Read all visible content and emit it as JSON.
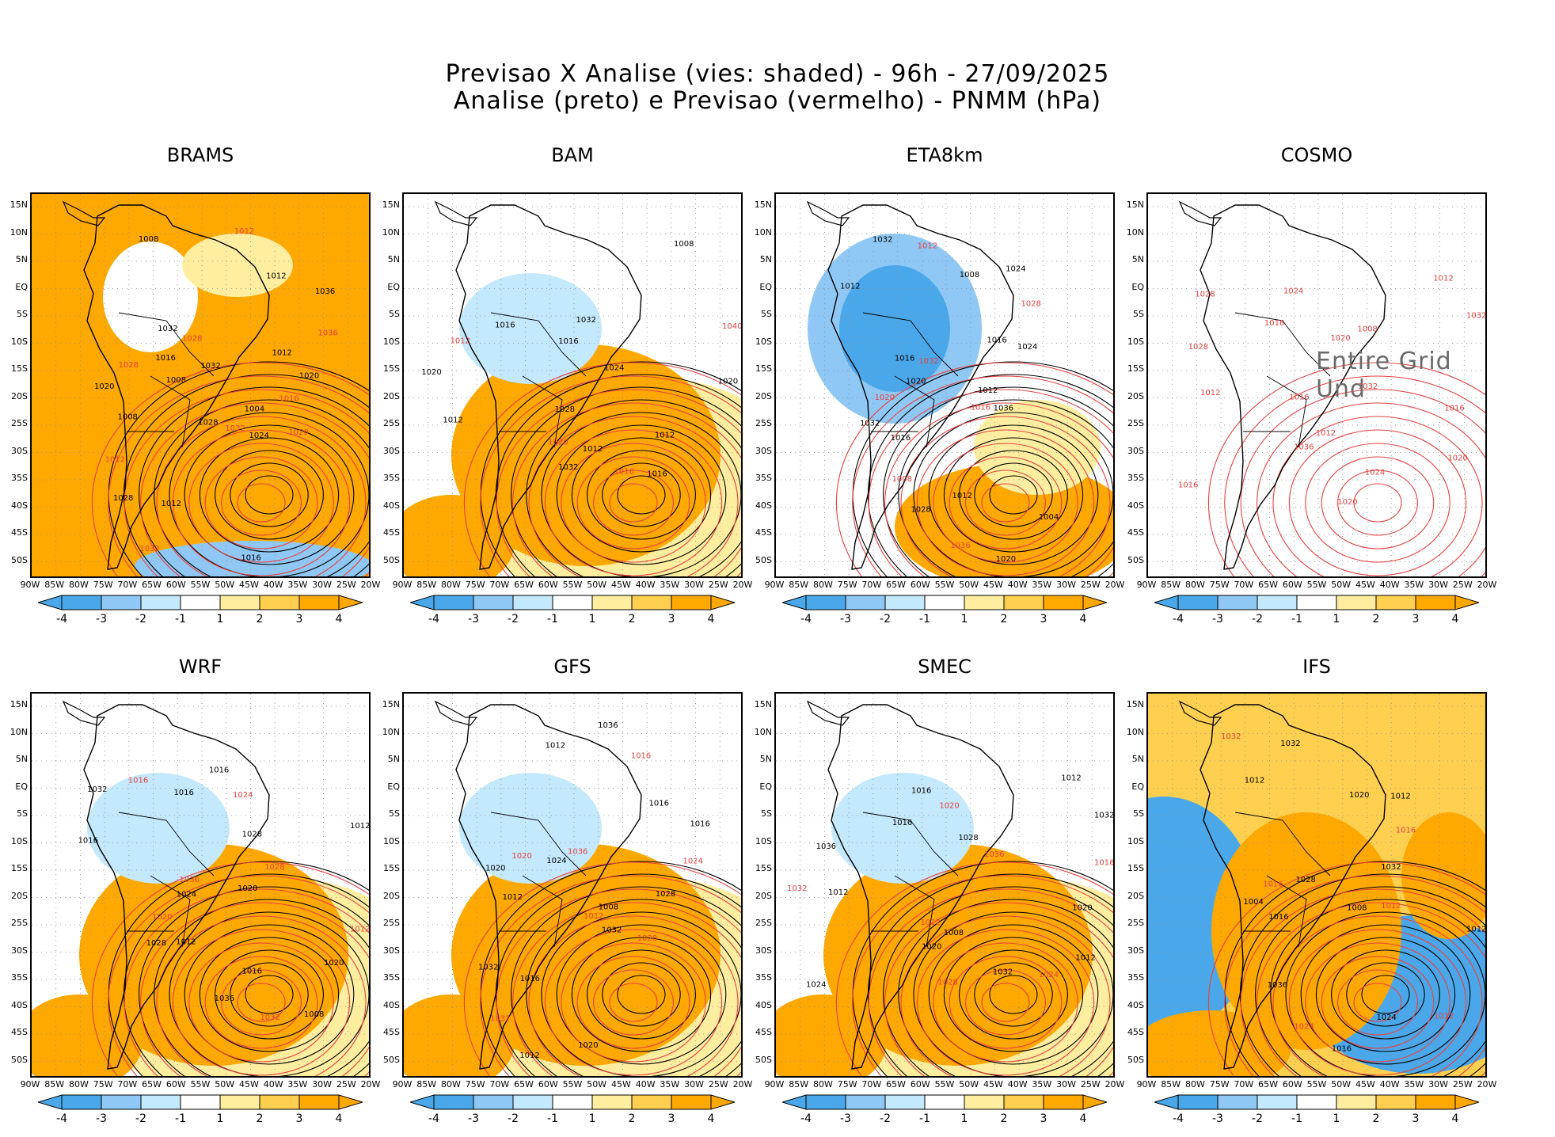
{
  "header": {
    "line1": "Previsao X Analise (vies: shaded) - 96h - 27/09/2025",
    "line2": "Analise (preto) e Previsao (vermelho) - PNMM (hPa)"
  },
  "axes": {
    "lat_labels": [
      "15N",
      "10N",
      "5N",
      "EQ",
      "5S",
      "10S",
      "15S",
      "20S",
      "25S",
      "30S",
      "35S",
      "40S",
      "45S",
      "50S"
    ],
    "lon_labels": [
      "90W",
      "85W",
      "80W",
      "75W",
      "70W",
      "65W",
      "60W",
      "55W",
      "50W",
      "45W",
      "40W",
      "35W",
      "30W",
      "25W",
      "20W"
    ]
  },
  "colorbar": {
    "labels": [
      "-4",
      "-3",
      "-2",
      "-1",
      "1",
      "2",
      "3",
      "4"
    ],
    "colors": [
      "#4aa8ea",
      "#8fc8f5",
      "#c4e8fc",
      "#ffffff",
      "#ffeea0",
      "#ffd050",
      "#ffa800"
    ]
  },
  "colors": {
    "analysis_contour": "#000000",
    "forecast_contour": "#e84040",
    "positive_bias": "#ffa800",
    "negative_bias": "#4aa8ea"
  },
  "panels": [
    {
      "name": "BRAMS",
      "bias_mode": "warm-broad",
      "contour_labels_black": [
        "1008",
        "1012",
        "1012",
        "1008",
        "1004",
        "1008",
        "1012",
        "1016",
        "1016",
        "1020",
        "1028",
        "1032",
        "1024",
        "1020",
        "1036",
        "1028",
        "1032"
      ],
      "contour_labels_red": [
        "1016",
        "1012",
        "1012",
        "1032",
        "1028",
        "1036",
        "1032",
        "1028",
        "1020"
      ]
    },
    {
      "name": "BAM",
      "bias_mode": "warm-south",
      "contour_labels_black": [
        "1016",
        "1012",
        "1012",
        "1008",
        "1012",
        "1016",
        "1020",
        "1028",
        "1032",
        "1016",
        "1020",
        "1024",
        "1032"
      ],
      "contour_labels_red": [
        "1016",
        "1012",
        "1040",
        "1020"
      ]
    },
    {
      "name": "ETA8km",
      "bias_mode": "cool-north",
      "contour_labels_black": [
        "1016",
        "1012",
        "1012",
        "1012",
        "1016",
        "1008",
        "1004",
        "1020",
        "1024",
        "1028",
        "1032",
        "1036",
        "1032",
        "1024",
        "1020",
        "1016"
      ],
      "contour_labels_red": [
        "1008",
        "1012",
        "1016",
        "1020",
        "1028",
        "1036",
        "1032"
      ]
    },
    {
      "name": "COSMO",
      "bias_mode": "none",
      "undefined_text": "Entire Grid Und",
      "contour_labels_black": [],
      "contour_labels_red": [
        "1012",
        "1012",
        "1012",
        "1016",
        "1016",
        "1016",
        "1020",
        "1024",
        "1028",
        "1032",
        "1036",
        "1024",
        "1020",
        "1016",
        "1008",
        "1020",
        "1028",
        "1032"
      ]
    },
    {
      "name": "WRF",
      "bias_mode": "warm-south",
      "contour_labels_black": [
        "1016",
        "1016",
        "1012",
        "1012",
        "1016",
        "1020",
        "1024",
        "1028",
        "1036",
        "1032",
        "1020",
        "1028",
        "1016",
        "1008"
      ],
      "contour_labels_red": [
        "1016",
        "1012",
        "1020",
        "1024",
        "1032",
        "1036",
        "1028"
      ]
    },
    {
      "name": "GFS",
      "bias_mode": "warm-south",
      "contour_labels_black": [
        "1016",
        "1012",
        "1008",
        "1012",
        "1016",
        "1020",
        "1024",
        "1028",
        "1032",
        "1036",
        "1032",
        "1020",
        "1016",
        "1012"
      ],
      "contour_labels_red": [
        "1016",
        "1012",
        "1020",
        "1024",
        "1032",
        "1036",
        "1028"
      ]
    },
    {
      "name": "SMEC",
      "bias_mode": "warm-south",
      "contour_labels_black": [
        "1012",
        "1012",
        "1008",
        "1016",
        "1020",
        "1024",
        "1028",
        "1032",
        "1036",
        "1032",
        "1020",
        "1016",
        "1012"
      ],
      "contour_labels_red": [
        "1016",
        "1012",
        "1020",
        "1024",
        "1032",
        "1036",
        "1028"
      ]
    },
    {
      "name": "IFS",
      "bias_mode": "mixed",
      "contour_labels_black": [
        "1012",
        "1012",
        "1016",
        "1020",
        "1024",
        "1028",
        "1032",
        "1036",
        "1032",
        "1008",
        "1004",
        "1012",
        "1016"
      ],
      "contour_labels_red": [
        "1012",
        "1016",
        "1016",
        "1024",
        "1032",
        "1012"
      ]
    }
  ]
}
